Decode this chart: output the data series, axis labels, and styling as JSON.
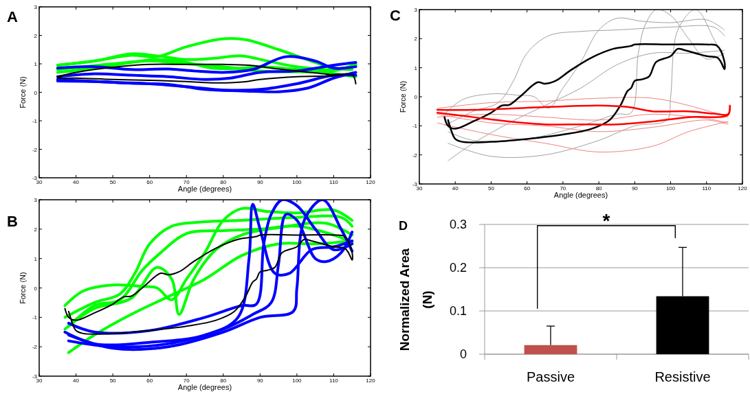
{
  "chart_data": [
    {
      "type": "line",
      "title": "A",
      "xlabel": "Angle (degrees)",
      "ylabel": "Force (N)",
      "xlim": [
        30,
        120
      ],
      "ylim": [
        -3,
        3
      ],
      "xticks": [
        30,
        40,
        50,
        60,
        70,
        80,
        90,
        100,
        110,
        120
      ],
      "yticks": [
        -3,
        -2,
        -1,
        0,
        1,
        2,
        3
      ],
      "series": [
        {
          "color": "#00ff00",
          "x": [
            35,
            45,
            55,
            62,
            70,
            80,
            86,
            95,
            105,
            110,
            115
          ],
          "values": [
            0.95,
            1.1,
            1.3,
            1.25,
            1.6,
            1.88,
            1.85,
            1.5,
            1.05,
            0.85,
            0.8
          ]
        },
        {
          "color": "#00ff00",
          "x": [
            35,
            45,
            55,
            62,
            70,
            78,
            85,
            92,
            100,
            110,
            116
          ],
          "values": [
            0.95,
            1.1,
            1.35,
            1.28,
            1.15,
            1.2,
            1.28,
            1.1,
            0.9,
            0.8,
            0.95
          ]
        },
        {
          "color": "#00ff00",
          "x": [
            35,
            45,
            55,
            62,
            70,
            77,
            85,
            90,
            100,
            110,
            116
          ],
          "values": [
            0.7,
            0.85,
            1.05,
            1.15,
            1.05,
            0.85,
            0.85,
            0.9,
            0.8,
            0.65,
            0.55
          ]
        },
        {
          "color": "#00ff00",
          "x": [
            35,
            50,
            60,
            70,
            80,
            90,
            100,
            110,
            116
          ],
          "values": [
            0.8,
            1.0,
            1.1,
            1.0,
            0.9,
            0.75,
            0.72,
            0.75,
            1.0
          ]
        },
        {
          "color": "#0000ff",
          "x": [
            35,
            45,
            55,
            65,
            72,
            80,
            88,
            97,
            105,
            110,
            116
          ],
          "values": [
            0.85,
            0.9,
            0.8,
            0.82,
            0.75,
            0.7,
            0.8,
            1.25,
            1.1,
            0.85,
            0.9
          ]
        },
        {
          "color": "#0000ff",
          "x": [
            35,
            45,
            55,
            65,
            75,
            82,
            90,
            100,
            110,
            116
          ],
          "values": [
            0.55,
            0.65,
            0.6,
            0.55,
            0.45,
            0.5,
            0.7,
            0.75,
            0.95,
            1.05
          ]
        },
        {
          "color": "#0000ff",
          "x": [
            35,
            45,
            55,
            65,
            75,
            85,
            95,
            103,
            110,
            116
          ],
          "values": [
            0.4,
            0.38,
            0.32,
            0.28,
            0.1,
            0.05,
            0.02,
            0.15,
            0.5,
            0.7
          ]
        },
        {
          "color": "#0000ff",
          "x": [
            35,
            50,
            60,
            70,
            80,
            90,
            100,
            110,
            116
          ],
          "values": [
            0.45,
            0.35,
            0.3,
            0.2,
            0.08,
            0.1,
            0.3,
            0.6,
            0.6
          ]
        },
        {
          "color": "#000000",
          "x": [
            35,
            40,
            50,
            60,
            70,
            80,
            87,
            95,
            105,
            110,
            115,
            116,
            115,
            110,
            100,
            90,
            85,
            78,
            70,
            60,
            50,
            40,
            35,
            36
          ],
          "values": [
            0.55,
            0.7,
            0.88,
            0.98,
            0.98,
            0.98,
            0.95,
            0.82,
            0.68,
            0.62,
            0.62,
            0.3,
            0.62,
            0.58,
            0.55,
            0.45,
            0.36,
            0.33,
            0.38,
            0.42,
            0.45,
            0.5,
            0.5,
            0.55
          ]
        }
      ]
    },
    {
      "type": "line",
      "title": "B",
      "xlabel": "Angle (degrees)",
      "ylabel": "Force (N)",
      "xlim": [
        30,
        120
      ],
      "ylim": [
        -3,
        3
      ],
      "xticks": [
        30,
        40,
        50,
        60,
        70,
        80,
        90,
        100,
        110,
        120
      ],
      "yticks": [
        -3,
        -2,
        -1,
        0,
        1,
        2,
        3
      ],
      "series": [
        {
          "color": "#00ff00",
          "x": [
            37,
            42,
            50,
            58,
            62,
            66,
            70,
            75,
            80,
            85,
            92,
            100,
            110,
            115
          ],
          "values": [
            -0.6,
            -0.1,
            0.1,
            0.05,
            0.0,
            -0.4,
            0.3,
            1.2,
            2.3,
            2.7,
            2.6,
            2.55,
            2.65,
            2.3
          ]
        },
        {
          "color": "#00ff00",
          "x": [
            37,
            45,
            52,
            56,
            60,
            66,
            75,
            85,
            100,
            112,
            115
          ],
          "values": [
            -1.0,
            -0.5,
            -0.2,
            0.5,
            1.5,
            2.1,
            2.25,
            2.3,
            2.4,
            2.4,
            2.1
          ]
        },
        {
          "color": "#00ff00",
          "x": [
            37,
            45,
            55,
            62,
            66,
            68,
            72,
            78,
            85,
            95,
            108,
            115
          ],
          "values": [
            -1.4,
            -0.7,
            -0.35,
            0.7,
            0.3,
            -0.9,
            0.3,
            1.3,
            1.8,
            2.05,
            2.2,
            1.8
          ]
        },
        {
          "color": "#00ff00",
          "x": [
            38,
            45,
            55,
            65,
            75,
            85,
            95,
            105,
            115
          ],
          "values": [
            -2.2,
            -1.6,
            -0.9,
            -0.3,
            0.3,
            1.1,
            1.5,
            1.5,
            1.6
          ]
        },
        {
          "color": "#00ff00",
          "x": [
            38,
            45,
            52,
            58,
            63,
            70,
            80,
            90,
            100,
            110,
            115
          ],
          "values": [
            -1.3,
            -0.6,
            -0.4,
            0.6,
            1.2,
            1.85,
            1.95,
            2.0,
            2.1,
            1.8,
            1.55
          ]
        },
        {
          "color": "#0000ff",
          "x": [
            37,
            45,
            60,
            75,
            84,
            87,
            88,
            90,
            94,
            98,
            104,
            110,
            115
          ],
          "values": [
            -1.5,
            -1.9,
            -1.85,
            -1.6,
            -1.0,
            1.0,
            2.85,
            2.0,
            0.5,
            0.5,
            1.3,
            1.4,
            1.6
          ]
        },
        {
          "color": "#0000ff",
          "x": [
            38,
            45,
            60,
            75,
            85,
            89,
            91,
            93,
            96,
            100,
            105,
            110,
            115
          ],
          "values": [
            -1.2,
            -1.5,
            -1.45,
            -1.0,
            -0.6,
            -0.55,
            1.5,
            2.5,
            3.0,
            2.8,
            2.0,
            1.3,
            1.5
          ]
        },
        {
          "color": "#0000ff",
          "x": [
            38,
            50,
            65,
            80,
            90,
            99,
            100,
            102,
            107,
            112,
            115
          ],
          "values": [
            -1.6,
            -2.05,
            -2.0,
            -1.5,
            -1.0,
            -0.8,
            0.0,
            2.3,
            3.0,
            2.0,
            1.25
          ]
        },
        {
          "color": "#0000ff",
          "x": [
            38,
            50,
            65,
            80,
            88,
            93,
            95,
            97,
            100,
            105,
            108,
            112,
            115
          ],
          "values": [
            -1.8,
            -2.0,
            -1.9,
            -1.4,
            -0.9,
            -0.5,
            0.8,
            2.5,
            2.3,
            1.0,
            0.9,
            1.2,
            1.9
          ]
        },
        {
          "color": "#000000",
          "x": [
            37,
            38,
            40,
            45,
            50,
            53,
            55,
            58,
            63,
            65,
            68,
            72,
            78,
            84,
            89,
            90,
            100,
            110,
            113,
            115,
            115,
            114,
            113,
            110,
            104,
            102,
            100,
            96,
            94,
            92,
            90,
            89,
            88,
            86,
            83,
            78,
            70,
            60,
            50,
            42,
            40,
            39,
            38
          ],
          "values": [
            -0.7,
            -1.0,
            -1.1,
            -0.85,
            -0.55,
            -0.3,
            -0.28,
            0.0,
            0.5,
            0.45,
            0.55,
            0.9,
            1.35,
            1.65,
            1.75,
            1.8,
            1.8,
            1.8,
            1.75,
            1.2,
            0.95,
            1.2,
            1.35,
            1.4,
            1.6,
            1.65,
            1.4,
            1.2,
            0.7,
            0.6,
            0.55,
            0.3,
            0.2,
            -0.3,
            -0.8,
            -1.1,
            -1.3,
            -1.45,
            -1.55,
            -1.55,
            -1.45,
            -1.2,
            -0.8
          ]
        }
      ]
    },
    {
      "type": "line",
      "title": "C",
      "xlabel": "Angle (degrees)",
      "ylabel": "Force (N)",
      "xlim": [
        30,
        120
      ],
      "ylim": [
        -3,
        3
      ],
      "xticks": [
        30,
        40,
        50,
        60,
        70,
        80,
        90,
        100,
        110,
        120
      ],
      "yticks": [
        -3,
        -2,
        -1,
        0,
        1,
        2,
        3
      ],
      "series": [
        {
          "color": "#a0a0a0",
          "x": [
            37,
            42,
            50,
            58,
            62,
            66,
            70,
            75,
            80,
            85,
            92,
            100,
            110,
            115
          ],
          "values": [
            -0.6,
            -0.1,
            0.1,
            0.05,
            0.0,
            -0.4,
            0.3,
            1.2,
            2.3,
            2.7,
            2.6,
            2.55,
            2.65,
            2.3
          ]
        },
        {
          "color": "#a0a0a0",
          "x": [
            38,
            45,
            55,
            65,
            75,
            85,
            95,
            105,
            115
          ],
          "values": [
            -2.2,
            -1.6,
            -0.9,
            -0.3,
            0.3,
            1.1,
            1.5,
            1.5,
            1.6
          ]
        },
        {
          "color": "#a0a0a0",
          "x": [
            38,
            45,
            60,
            75,
            85,
            89,
            91,
            93,
            96,
            100,
            105,
            110,
            115
          ],
          "values": [
            -1.2,
            -1.5,
            -1.45,
            -1.0,
            -0.6,
            -0.55,
            1.5,
            2.5,
            3.0,
            2.8,
            2.0,
            1.3,
            1.5
          ]
        },
        {
          "color": "#a0a0a0",
          "x": [
            38,
            50,
            65,
            80,
            90,
            99,
            100,
            102,
            107,
            112,
            115
          ],
          "values": [
            -1.6,
            -2.05,
            -2.0,
            -1.5,
            -1.0,
            -0.8,
            0.0,
            2.3,
            3.0,
            2.0,
            1.25
          ]
        },
        {
          "color": "#a0a0a0",
          "x": [
            37,
            45,
            52,
            56,
            60,
            66,
            75,
            85,
            100,
            112,
            115
          ],
          "values": [
            -1.0,
            -0.5,
            -0.2,
            0.5,
            1.5,
            2.1,
            2.25,
            2.3,
            2.4,
            2.4,
            2.1
          ]
        },
        {
          "color": "#f08080",
          "x": [
            35,
            50,
            65,
            80,
            95,
            105,
            116
          ],
          "values": [
            -0.4,
            -0.2,
            -0.15,
            -0.05,
            -0.05,
            -0.3,
            -0.7
          ]
        },
        {
          "color": "#f08080",
          "x": [
            35,
            50,
            65,
            80,
            95,
            105,
            116
          ],
          "values": [
            -0.9,
            -1.3,
            -1.6,
            -1.9,
            -1.7,
            -1.2,
            -0.85
          ]
        },
        {
          "color": "#f08080",
          "x": [
            35,
            50,
            65,
            80,
            95,
            110,
            116
          ],
          "values": [
            -0.6,
            -0.9,
            -1.0,
            -1.2,
            -1.05,
            -0.8,
            -0.95
          ]
        },
        {
          "color": "#f08080",
          "x": [
            35,
            50,
            65,
            80,
            95,
            110,
            116
          ],
          "values": [
            -0.7,
            -0.6,
            -0.7,
            -0.8,
            -0.6,
            -0.75,
            -0.9
          ]
        },
        {
          "color": "#000000",
          "x": [
            37,
            38,
            40,
            45,
            50,
            53,
            55,
            58,
            63,
            65,
            68,
            72,
            78,
            84,
            89,
            90,
            100,
            110,
            113,
            115,
            115,
            114,
            113,
            110,
            104,
            102,
            100,
            96,
            94,
            92,
            90,
            89,
            88,
            86,
            83,
            78,
            70,
            60,
            50,
            42,
            40,
            39,
            38
          ],
          "values": [
            -0.7,
            -1.0,
            -1.1,
            -0.85,
            -0.55,
            -0.3,
            -0.28,
            0.0,
            0.5,
            0.45,
            0.55,
            0.9,
            1.35,
            1.65,
            1.75,
            1.8,
            1.8,
            1.8,
            1.75,
            1.2,
            0.95,
            1.2,
            1.35,
            1.4,
            1.6,
            1.65,
            1.4,
            1.2,
            0.7,
            0.6,
            0.55,
            0.3,
            0.2,
            -0.3,
            -0.8,
            -1.1,
            -1.3,
            -1.45,
            -1.55,
            -1.55,
            -1.45,
            -1.2,
            -0.8
          ]
        },
        {
          "color": "#ff0000",
          "x": [
            35,
            45,
            60,
            80,
            88,
            95,
            105,
            112,
            116,
            116.5,
            116,
            105,
            95,
            85,
            75,
            65,
            55,
            45,
            35
          ],
          "values": [
            -0.45,
            -0.45,
            -0.38,
            -0.3,
            -0.35,
            -0.5,
            -0.5,
            -0.58,
            -0.6,
            -0.3,
            -0.62,
            -0.7,
            -0.85,
            -0.95,
            -0.95,
            -0.95,
            -0.85,
            -0.7,
            -0.55
          ]
        }
      ]
    },
    {
      "type": "bar",
      "title": "D",
      "ylabel": "Normalized Area\n(N)",
      "categories": [
        "Passive",
        "Resistive"
      ],
      "values": [
        0.021,
        0.134
      ],
      "colors": [
        "#c0504d",
        "#000000"
      ],
      "errors": [
        [
          0.021,
          0.065
        ],
        [
          0.134,
          0.247
        ]
      ],
      "ylim": [
        0,
        0.3
      ],
      "yticks": [
        0,
        0.1,
        0.2,
        0.3
      ],
      "grid": "y",
      "annotations": [
        "*"
      ]
    }
  ]
}
